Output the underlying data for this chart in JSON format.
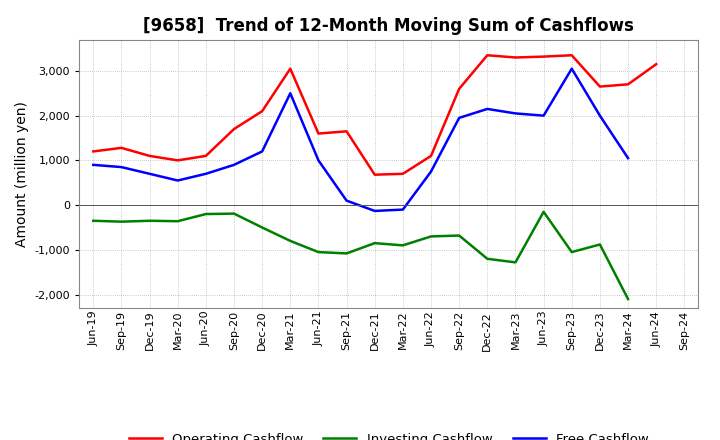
{
  "title": "[9658]  Trend of 12-Month Moving Sum of Cashflows",
  "ylabel": "Amount (million yen)",
  "background_color": "#ffffff",
  "plot_bg_color": "#ffffff",
  "grid_color": "#999999",
  "title_fontsize": 12,
  "axis_label_fontsize": 10,
  "tick_fontsize": 8,
  "x_labels": [
    "Jun-19",
    "Sep-19",
    "Dec-19",
    "Mar-20",
    "Jun-20",
    "Sep-20",
    "Dec-20",
    "Mar-21",
    "Jun-21",
    "Sep-21",
    "Dec-21",
    "Mar-22",
    "Jun-22",
    "Sep-22",
    "Dec-22",
    "Mar-23",
    "Jun-23",
    "Sep-23",
    "Dec-23",
    "Mar-24",
    "Jun-24",
    "Sep-24"
  ],
  "operating_cashflow": [
    1200,
    1280,
    1100,
    1000,
    1100,
    1700,
    2100,
    3050,
    1600,
    1650,
    680,
    700,
    1100,
    2600,
    3350,
    3300,
    3320,
    3350,
    2650,
    2700,
    3150,
    null
  ],
  "investing_cashflow": [
    -350,
    -370,
    -350,
    -360,
    -200,
    -190,
    -500,
    -800,
    -1050,
    -1080,
    -850,
    -900,
    -700,
    -680,
    -1200,
    -1280,
    -150,
    -1050,
    -880,
    -2100,
    null,
    null
  ],
  "free_cashflow": [
    900,
    850,
    700,
    550,
    700,
    900,
    1200,
    2500,
    1000,
    100,
    -130,
    -100,
    750,
    1950,
    2150,
    2050,
    2000,
    3050,
    2000,
    1050,
    null,
    null
  ],
  "operating_color": "#ff0000",
  "investing_color": "#008000",
  "free_color": "#0000ff",
  "ylim": [
    -2300,
    3700
  ],
  "yticks": [
    -2000,
    -1000,
    0,
    1000,
    2000,
    3000
  ],
  "line_width": 1.8
}
